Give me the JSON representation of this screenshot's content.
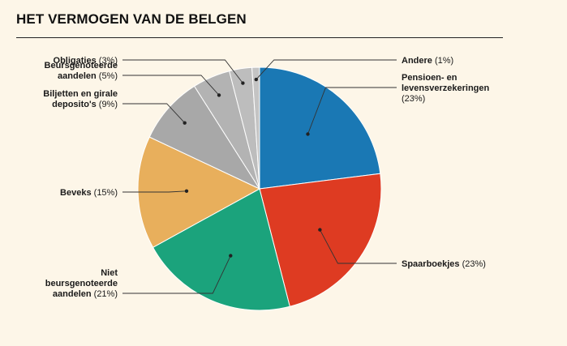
{
  "chart_data": {
    "type": "pie",
    "title": "HET VERMOGEN VAN DE BELGEN",
    "unit": "%",
    "slices": [
      {
        "key": "pensioen",
        "name_lines": [
          "Pensioen- en",
          "levensverzekeringen"
        ],
        "pct_text": "(23%)",
        "value": 23,
        "color": "#1a78b4"
      },
      {
        "key": "spaarboekjes",
        "name_lines": [
          "Spaarboekjes"
        ],
        "pct_text": "(23%)",
        "value": 23,
        "color": "#de3b22"
      },
      {
        "key": "niet-beurs",
        "name_lines": [
          "Niet",
          "beursgenoteerde",
          "aandelen"
        ],
        "pct_text": "(21%)",
        "value": 21,
        "color": "#1ba37c"
      },
      {
        "key": "beveks",
        "name_lines": [
          "Beveks"
        ],
        "pct_text": "(15%)",
        "value": 15,
        "color": "#e8af5c"
      },
      {
        "key": "biljetten",
        "name_lines": [
          "Biljetten en girale",
          "deposito's"
        ],
        "pct_text": "(9%)",
        "value": 9,
        "color": "#a8a8a8"
      },
      {
        "key": "beurs",
        "name_lines": [
          "Beursgenoteerde",
          "aandelen"
        ],
        "pct_text": "(5%)",
        "value": 5,
        "color": "#b3b3b3"
      },
      {
        "key": "obligaties",
        "name_lines": [
          "Obligaties"
        ],
        "pct_text": "(3%)",
        "value": 3,
        "color": "#bdbdbd"
      },
      {
        "key": "andere",
        "name_lines": [
          "Andere"
        ],
        "pct_text": "(1%)",
        "value": 1,
        "color": "#c4c4c4"
      }
    ]
  }
}
